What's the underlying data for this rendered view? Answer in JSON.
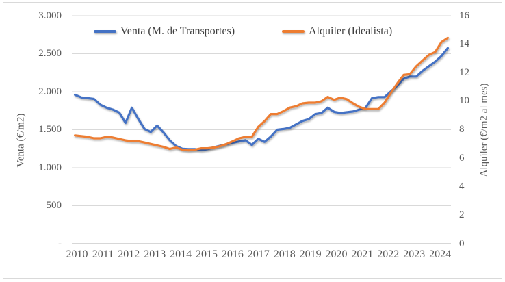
{
  "chart_data": {
    "type": "line",
    "title": "",
    "x_years": [
      "2010",
      "2011",
      "2012",
      "2013",
      "2014",
      "2015",
      "2016",
      "2017",
      "2018",
      "2019",
      "2020",
      "2021",
      "2022",
      "2023",
      "2024"
    ],
    "x_frequency": "quarterly",
    "series": [
      {
        "name": "Venta (M. de Transportes)",
        "color": "#4472C4",
        "axis": "left",
        "values": [
          1960,
          1925,
          1915,
          1905,
          1830,
          1790,
          1765,
          1725,
          1590,
          1790,
          1645,
          1510,
          1470,
          1555,
          1465,
          1360,
          1285,
          1250,
          1245,
          1245,
          1230,
          1245,
          1270,
          1290,
          1310,
          1330,
          1345,
          1360,
          1300,
          1380,
          1340,
          1410,
          1500,
          1510,
          1525,
          1570,
          1615,
          1640,
          1705,
          1720,
          1790,
          1735,
          1720,
          1730,
          1740,
          1765,
          1790,
          1915,
          1930,
          1930,
          2005,
          2080,
          2170,
          2200,
          2200,
          2275,
          2335,
          2395,
          2470,
          2575
        ]
      },
      {
        "name": "Alquiler (Idealista)",
        "color": "#ED7D31",
        "axis": "right",
        "values": [
          7.6,
          7.55,
          7.5,
          7.4,
          7.4,
          7.5,
          7.45,
          7.35,
          7.25,
          7.2,
          7.2,
          7.1,
          7.0,
          6.9,
          6.8,
          6.65,
          6.75,
          6.6,
          6.55,
          6.6,
          6.7,
          6.7,
          6.75,
          6.85,
          7.0,
          7.2,
          7.4,
          7.5,
          7.5,
          8.2,
          8.6,
          9.1,
          9.1,
          9.3,
          9.55,
          9.65,
          9.85,
          9.9,
          9.9,
          10.0,
          10.3,
          10.1,
          10.25,
          10.15,
          9.85,
          9.6,
          9.45,
          9.45,
          9.45,
          9.9,
          10.6,
          11.25,
          11.85,
          11.9,
          12.45,
          12.85,
          13.25,
          13.45,
          14.15,
          14.45
        ]
      }
    ],
    "left_axis": {
      "title": "Venta (€/m2)",
      "min": 0,
      "max": 3000,
      "tick_interval": 500,
      "tick_labels": [
        "-",
        "500",
        "1.000",
        "1.500",
        "2.000",
        "2.500",
        "3.000"
      ]
    },
    "right_axis": {
      "title": "Alquiler (€/m2 al mes)",
      "min": 0,
      "max": 16,
      "tick_interval": 2,
      "tick_labels": [
        "0",
        "2",
        "4",
        "6",
        "8",
        "10",
        "12",
        "14",
        "16"
      ]
    },
    "grid": "horizontal",
    "legend_position": "top",
    "colors": {
      "gridline": "#d9d9d9",
      "axis_line": "#bfbfbf",
      "tick_text": "#595959",
      "legend_text": "#404040",
      "frame_border": "#d9d9d9",
      "background": "#ffffff"
    }
  }
}
